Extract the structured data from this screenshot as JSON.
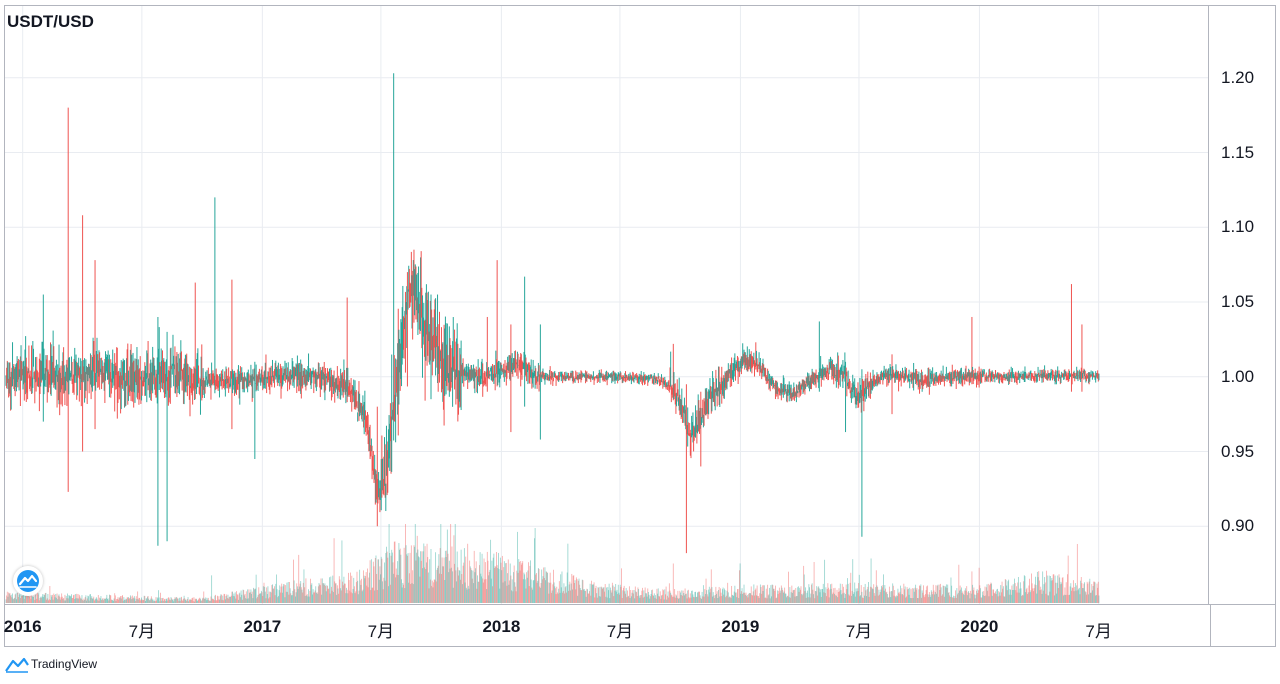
{
  "chart_data": {
    "type": "candlestick",
    "title": "USDT/USD",
    "x_ticks": [
      {
        "label": "2016",
        "date": "2016-01-01",
        "bold": true
      },
      {
        "label": "7月",
        "date": "2016-07-01",
        "bold": false
      },
      {
        "label": "2017",
        "date": "2017-01-01",
        "bold": true
      },
      {
        "label": "7月",
        "date": "2017-07-01",
        "bold": false
      },
      {
        "label": "2018",
        "date": "2018-01-01",
        "bold": true
      },
      {
        "label": "7月",
        "date": "2018-07-01",
        "bold": false
      },
      {
        "label": "2019",
        "date": "2019-01-01",
        "bold": true
      },
      {
        "label": "7月",
        "date": "2019-07-01",
        "bold": false
      },
      {
        "label": "2020",
        "date": "2020-01-01",
        "bold": true
      },
      {
        "label": "7月",
        "date": "2020-07-01",
        "bold": false
      }
    ],
    "y_ticks": [
      "1.20",
      "1.15",
      "1.10",
      "1.05",
      "1.00",
      "0.95",
      "0.90"
    ],
    "ylim": [
      0.848,
      1.248
    ],
    "xlim": [
      "2015-12-05",
      "2020-12-15"
    ],
    "series_end": "2020-07-01",
    "grid": true,
    "colors": {
      "up": "#26a69a",
      "down": "#ef5350",
      "grid": "#e9ecf1",
      "border": "#b2b5be",
      "text": "#131722"
    },
    "price_path": [
      [
        "2015-12-10",
        1.0
      ],
      [
        "2016-01-20",
        1.003
      ],
      [
        "2016-03-15",
        1.0
      ],
      [
        "2016-05-01",
        1.004
      ],
      [
        "2016-06-10",
        0.998
      ],
      [
        "2016-08-01",
        1.002
      ],
      [
        "2016-10-01",
        0.996
      ],
      [
        "2016-12-01",
        0.997
      ],
      [
        "2017-02-01",
        1.001
      ],
      [
        "2017-04-01",
        1.0
      ],
      [
        "2017-05-15",
        0.992
      ],
      [
        "2017-06-10",
        0.97
      ],
      [
        "2017-06-25",
        0.92
      ],
      [
        "2017-07-05",
        0.93
      ],
      [
        "2017-07-20",
        0.975
      ],
      [
        "2017-08-01",
        1.02
      ],
      [
        "2017-08-15",
        1.07
      ],
      [
        "2017-09-01",
        1.04
      ],
      [
        "2017-10-01",
        1.01
      ],
      [
        "2017-11-01",
        1.002
      ],
      [
        "2017-12-01",
        1.0
      ],
      [
        "2018-01-01",
        1.005
      ],
      [
        "2018-02-01",
        1.01
      ],
      [
        "2018-02-20",
        1.0
      ],
      [
        "2018-04-01",
        1.0
      ],
      [
        "2018-07-01",
        1.0
      ],
      [
        "2018-09-01",
        0.998
      ],
      [
        "2018-10-01",
        0.985
      ],
      [
        "2018-10-15",
        0.96
      ],
      [
        "2018-10-25",
        0.965
      ],
      [
        "2018-11-10",
        0.982
      ],
      [
        "2018-12-01",
        0.995
      ],
      [
        "2019-01-01",
        1.01
      ],
      [
        "2019-01-20",
        1.012
      ],
      [
        "2019-02-20",
        0.994
      ],
      [
        "2019-03-20",
        0.988
      ],
      [
        "2019-04-20",
        0.998
      ],
      [
        "2019-05-20",
        1.005
      ],
      [
        "2019-06-10",
        1.0
      ],
      [
        "2019-06-25",
        0.985
      ],
      [
        "2019-07-15",
        0.995
      ],
      [
        "2019-08-20",
        1.002
      ],
      [
        "2019-10-01",
        0.998
      ],
      [
        "2019-12-01",
        1.001
      ],
      [
        "2020-02-01",
        1.0
      ],
      [
        "2020-04-01",
        1.001
      ],
      [
        "2020-07-01",
        1.0
      ]
    ],
    "noise_regimes": [
      [
        "2015-12-05",
        0.011
      ],
      [
        "2016-10-01",
        0.006
      ],
      [
        "2017-05-01",
        0.008
      ],
      [
        "2017-07-01",
        0.02
      ],
      [
        "2017-11-01",
        0.006
      ],
      [
        "2018-03-01",
        0.0025
      ],
      [
        "2018-09-15",
        0.008
      ],
      [
        "2018-12-01",
        0.006
      ],
      [
        "2019-01-25",
        0.004
      ],
      [
        "2019-05-15",
        0.006
      ],
      [
        "2019-07-20",
        0.004
      ],
      [
        "2020-01-01",
        0.0028
      ]
    ],
    "spikes": [
      {
        "date": "2016-03-10",
        "high": 1.18,
        "low": 0.923
      },
      {
        "date": "2016-04-01",
        "high": 1.108,
        "low": 0.95
      },
      {
        "date": "2016-04-20",
        "high": 1.078,
        "low": 0.965
      },
      {
        "date": "2016-02-01",
        "high": 1.055,
        "low": 0.97
      },
      {
        "date": "2016-07-25",
        "high": 1.04,
        "low": 0.887
      },
      {
        "date": "2016-08-08",
        "high": 1.03,
        "low": 0.89
      },
      {
        "date": "2016-09-20",
        "high": 1.063,
        "low": 0.985
      },
      {
        "date": "2016-10-20",
        "high": 1.12,
        "low": 0.99
      },
      {
        "date": "2016-11-15",
        "high": 1.065,
        "low": 0.965
      },
      {
        "date": "2016-12-20",
        "high": 1.01,
        "low": 0.945
      },
      {
        "date": "2017-05-10",
        "high": 1.053,
        "low": 0.99
      },
      {
        "date": "2017-06-25",
        "high": 0.98,
        "low": 0.9
      },
      {
        "date": "2017-07-20",
        "high": 1.203,
        "low": 0.96
      },
      {
        "date": "2017-08-10",
        "high": 1.07,
        "low": 1.0
      },
      {
        "date": "2017-09-15",
        "high": 1.055,
        "low": 0.985
      },
      {
        "date": "2017-12-10",
        "high": 1.04,
        "low": 0.99
      },
      {
        "date": "2017-12-25",
        "high": 1.078,
        "low": 0.995
      },
      {
        "date": "2018-01-15",
        "high": 1.035,
        "low": 0.963
      },
      {
        "date": "2018-02-05",
        "high": 1.067,
        "low": 0.98
      },
      {
        "date": "2018-03-01",
        "high": 1.035,
        "low": 0.958
      },
      {
        "date": "2018-09-20",
        "high": 1.022,
        "low": 0.995
      },
      {
        "date": "2018-10-10",
        "high": 0.995,
        "low": 0.882
      },
      {
        "date": "2018-11-01",
        "high": 0.99,
        "low": 0.94
      },
      {
        "date": "2019-05-01",
        "high": 1.037,
        "low": 0.99
      },
      {
        "date": "2019-06-10",
        "high": 1.01,
        "low": 0.963
      },
      {
        "date": "2019-07-05",
        "high": 1.005,
        "low": 0.893
      },
      {
        "date": "2019-08-20",
        "high": 1.015,
        "low": 0.975
      },
      {
        "date": "2019-12-20",
        "high": 1.04,
        "low": 0.995
      },
      {
        "date": "2020-05-20",
        "high": 1.062,
        "low": 0.99
      },
      {
        "date": "2020-06-05",
        "high": 1.035,
        "low": 0.99
      },
      {
        "date": "2020-08-20",
        "high": 1.005,
        "low": 0.975
      }
    ],
    "volume_profile": [
      [
        "2015-12-05",
        0.1
      ],
      [
        "2016-06-01",
        0.07
      ],
      [
        "2016-10-01",
        0.05
      ],
      [
        "2017-01-01",
        0.15
      ],
      [
        "2017-06-01",
        0.3
      ],
      [
        "2017-07-15",
        0.55
      ],
      [
        "2018-01-01",
        0.45
      ],
      [
        "2018-03-01",
        0.35
      ],
      [
        "2018-06-01",
        0.18
      ],
      [
        "2018-09-15",
        0.12
      ],
      [
        "2019-01-01",
        0.16
      ],
      [
        "2019-07-01",
        0.18
      ],
      [
        "2020-01-01",
        0.16
      ],
      [
        "2020-04-01",
        0.28
      ],
      [
        "2020-07-01",
        0.22
      ]
    ],
    "volume_spikes": [
      {
        "date": "2016-10-15",
        "level": 0.35
      },
      {
        "date": "2017-07-10",
        "level": 0.65
      },
      {
        "date": "2017-08-25",
        "level": 0.85
      },
      {
        "date": "2017-10-15",
        "level": 1.0
      },
      {
        "date": "2017-11-10",
        "level": 0.75
      },
      {
        "date": "2017-12-15",
        "level": 0.8
      },
      {
        "date": "2018-01-25",
        "level": 0.9
      },
      {
        "date": "2018-02-20",
        "level": 0.82
      },
      {
        "date": "2018-09-20",
        "level": 0.5
      },
      {
        "date": "2019-12-20",
        "level": 0.4
      },
      {
        "date": "2020-05-15",
        "level": 0.6
      }
    ]
  },
  "branding": {
    "name": "TradingView",
    "icon": "tradingview-logo-icon",
    "watermark_icon": "tradingview-watermark-icon"
  }
}
